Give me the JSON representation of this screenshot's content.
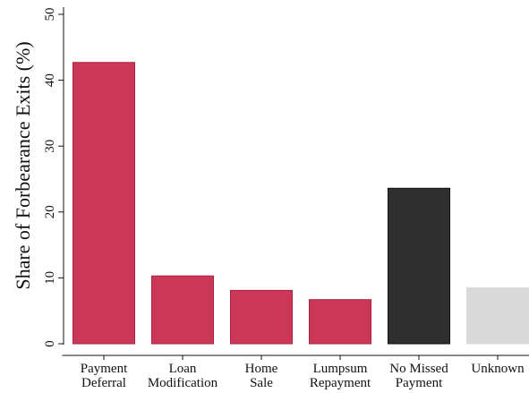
{
  "chart_data": {
    "type": "bar",
    "title": "",
    "xlabel": "",
    "ylabel": "Share of Forbearance Exits (%)",
    "ylim": [
      0,
      50
    ],
    "yticks": [
      0,
      10,
      20,
      30,
      40,
      50
    ],
    "grid": false,
    "categories": [
      [
        "Payment",
        "Deferral"
      ],
      [
        "Loan",
        "Modification"
      ],
      [
        "Home",
        "Sale"
      ],
      [
        "Lumpsum",
        "Repayment"
      ],
      [
        "No Missed",
        "Payment"
      ],
      [
        "Unknown"
      ]
    ],
    "values": [
      42.7,
      10.3,
      8.1,
      6.7,
      23.6,
      8.5
    ],
    "colors": [
      "#cc3658",
      "#cc3658",
      "#cc3658",
      "#cc3658",
      "#2f2f2f",
      "#d9d9d9"
    ],
    "edge_colors": [
      "#a8243f",
      "#a8243f",
      "#a8243f",
      "#a8243f",
      "#111111",
      "#d9d9d9"
    ]
  }
}
